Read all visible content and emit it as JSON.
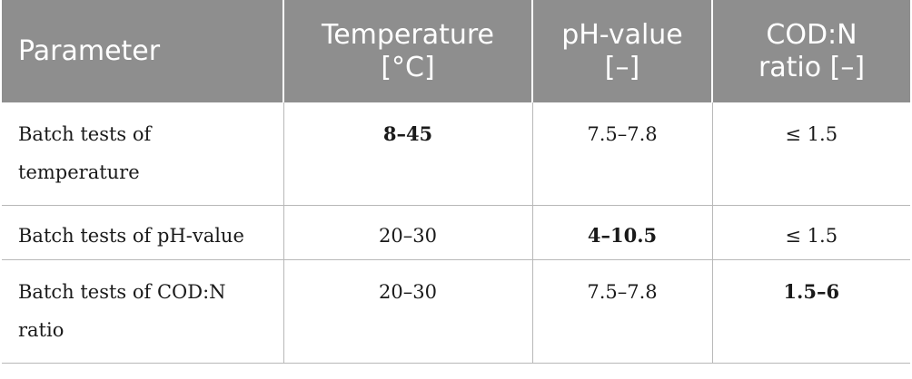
{
  "table": {
    "headers": [
      {
        "line1": "Parameter",
        "line2": ""
      },
      {
        "line1": "Temperature",
        "line2": "[°C]"
      },
      {
        "line1": "pH-value",
        "line2": "[–]"
      },
      {
        "line1": "COD:N",
        "line2": "ratio [–]"
      }
    ],
    "rows": [
      {
        "parameter": "Batch tests of temperature",
        "temperature": "8–45",
        "ph_value": "7.5–7.8",
        "cod_n_ratio": "≤ 1.5",
        "bold_column": "temperature"
      },
      {
        "parameter": "Batch tests of pH-value",
        "temperature": "20–30",
        "ph_value": "4–10.5",
        "cod_n_ratio": "≤ 1.5",
        "bold_column": "ph_value"
      },
      {
        "parameter": "Batch tests of COD:N ratio",
        "temperature": "20–30",
        "ph_value": "7.5–7.8",
        "cod_n_ratio": "1.5–6",
        "bold_column": "cod_n_ratio"
      }
    ]
  }
}
